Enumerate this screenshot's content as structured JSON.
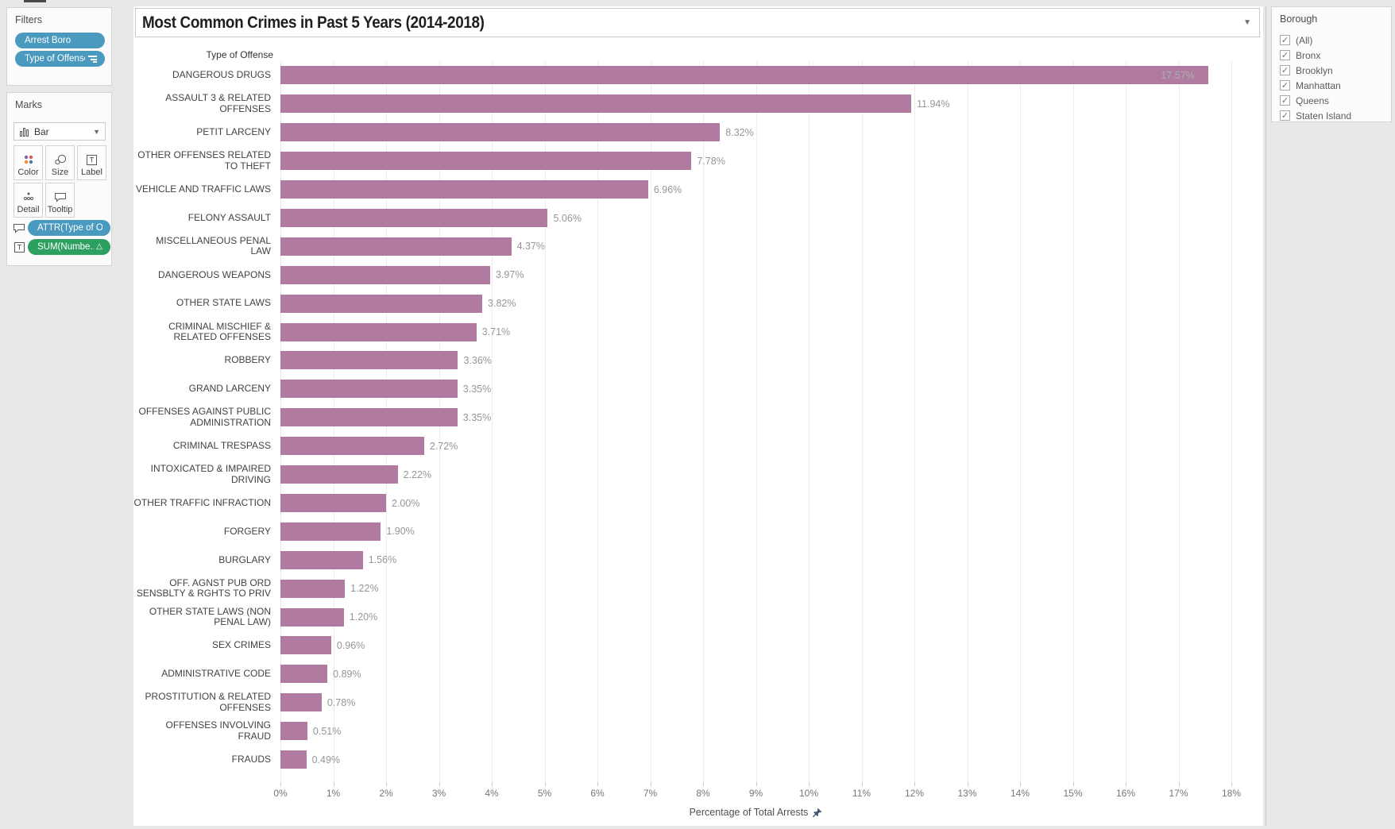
{
  "colors": {
    "bar": "#b07aa1",
    "pill_blue": "#4a9abf",
    "pill_green": "#2da05f",
    "chrome_bg": "#e8e8e8"
  },
  "filters_card": {
    "title": "Filters",
    "pills": [
      {
        "label": "Arrest Boro",
        "icon": null
      },
      {
        "label": "Type of Offense",
        "icon": "sort-descending-icon"
      }
    ]
  },
  "marks_card": {
    "title": "Marks",
    "mark_type": {
      "label": "Bar",
      "icon": "bar-chart-icon"
    },
    "buttons": [
      {
        "label": "Color",
        "icon": "color-dots-icon"
      },
      {
        "label": "Size",
        "icon": "size-circles-icon"
      },
      {
        "label": "Label",
        "icon": "label-icon"
      },
      {
        "label": "Detail",
        "icon": "detail-dots-icon"
      },
      {
        "label": "Tooltip",
        "icon": "tooltip-bubble-icon"
      }
    ],
    "pills": [
      {
        "label": "ATTR(Type of O..",
        "icon": "tooltip-bubble-icon",
        "color": "#4a9abf",
        "badge": ""
      },
      {
        "label": "SUM(Numbe..",
        "icon": "label-icon",
        "color": "#2da05f",
        "badge": "△"
      }
    ]
  },
  "sheet": {
    "title": "Most Common Crimes in Past 5 Years (2014-2018)",
    "dropdown_caret": "▼"
  },
  "borough_panel": {
    "title": "Borough",
    "options": [
      {
        "label": "(All)",
        "checked": true
      },
      {
        "label": "Bronx",
        "checked": true
      },
      {
        "label": "Brooklyn",
        "checked": true
      },
      {
        "label": "Manhattan",
        "checked": true
      },
      {
        "label": "Queens",
        "checked": true
      },
      {
        "label": "Staten Island",
        "checked": true
      }
    ],
    "check_glyph": "✓"
  },
  "chart_data": {
    "type": "bar",
    "orientation": "horizontal",
    "title": "Most Common Crimes in Past 5 Years (2014-2018)",
    "category_header": "Type of Offense",
    "xlabel": "Percentage of Total Arrests",
    "xlim": [
      0,
      18
    ],
    "grid": true,
    "bar_color": "#b07aa1",
    "x_ticks": [
      "0%",
      "1%",
      "2%",
      "3%",
      "4%",
      "5%",
      "6%",
      "7%",
      "8%",
      "9%",
      "10%",
      "11%",
      "12%",
      "13%",
      "14%",
      "15%",
      "16%",
      "17%",
      "18%"
    ],
    "categories": [
      "DANGEROUS DRUGS",
      "ASSAULT 3 & RELATED OFFENSES",
      "PETIT LARCENY",
      "OTHER OFFENSES RELATED TO THEFT",
      "VEHICLE AND TRAFFIC LAWS",
      "FELONY ASSAULT",
      "MISCELLANEOUS PENAL LAW",
      "DANGEROUS WEAPONS",
      "OTHER STATE LAWS",
      "CRIMINAL MISCHIEF & RELATED OFFENSES",
      "ROBBERY",
      "GRAND LARCENY",
      "OFFENSES AGAINST PUBLIC ADMINISTRATION",
      "CRIMINAL TRESPASS",
      "INTOXICATED & IMPAIRED DRIVING",
      "OTHER TRAFFIC INFRACTION",
      "FORGERY",
      "BURGLARY",
      "OFF. AGNST PUB ORD SENSBLTY & RGHTS TO PRIV",
      "OTHER STATE LAWS (NON PENAL LAW)",
      "SEX CRIMES",
      "ADMINISTRATIVE CODE",
      "PROSTITUTION & RELATED OFFENSES",
      "OFFENSES INVOLVING FRAUD",
      "FRAUDS"
    ],
    "values": [
      17.57,
      11.94,
      8.32,
      7.78,
      6.96,
      5.06,
      4.37,
      3.97,
      3.82,
      3.71,
      3.36,
      3.35,
      3.35,
      2.72,
      2.22,
      2.0,
      1.9,
      1.56,
      1.22,
      1.2,
      0.96,
      0.89,
      0.78,
      0.51,
      0.49
    ],
    "value_labels": [
      "17.57%",
      "11.94%",
      "8.32%",
      "7.78%",
      "6.96%",
      "5.06%",
      "4.37%",
      "3.97%",
      "3.82%",
      "3.71%",
      "3.36%",
      "3.35%",
      "3.35%",
      "2.72%",
      "2.22%",
      "2.00%",
      "1.90%",
      "1.56%",
      "1.22%",
      "1.20%",
      "0.96%",
      "0.89%",
      "0.78%",
      "0.51%",
      "0.49%"
    ],
    "inside_label_indices": [
      0
    ]
  }
}
